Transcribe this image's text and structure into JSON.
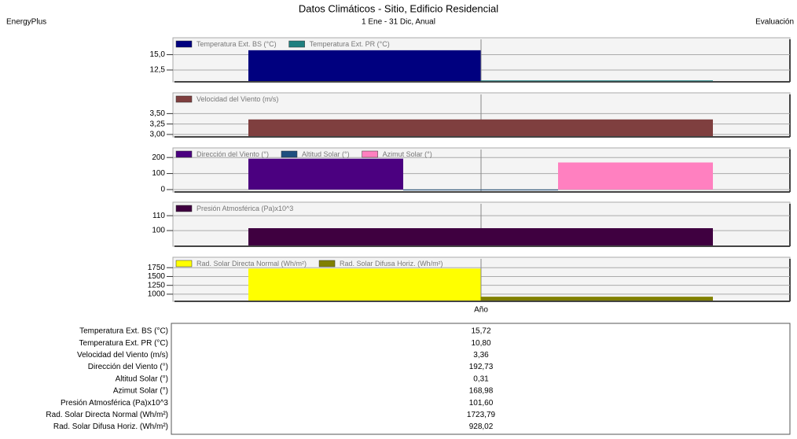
{
  "header": {
    "left": "EnergyPlus",
    "title": "Datos Climáticos - Sitio, Edificio Residencial",
    "subtitle": "1 Ene - 31 Dic, Anual",
    "right": "Evaluación"
  },
  "x_axis_label": "Año",
  "chart_data": [
    {
      "type": "bar",
      "series": [
        {
          "name": "Temperatura Ext. BS (°C)",
          "color": "#00007f",
          "values": [
            15.72
          ]
        },
        {
          "name": "Temperatura Ext. PR (°C)",
          "color": "#1f8080",
          "values": [
            10.8
          ]
        }
      ],
      "ylim": [
        10.7,
        17.5
      ],
      "yticks": [
        {
          "value": 12.5,
          "label": "12,5"
        },
        {
          "value": 15,
          "label": "15,0"
        }
      ],
      "grid": true
    },
    {
      "type": "bar",
      "series": [
        {
          "name": "Velocidad del Viento (m/s)",
          "color": "#7f3f3f",
          "values": [
            3.36
          ]
        }
      ],
      "ylim": [
        2.96,
        3.96
      ],
      "yticks": [
        {
          "value": 3,
          "label": "3,00"
        },
        {
          "value": 3.25,
          "label": "3,25"
        },
        {
          "value": 3.5,
          "label": "3,50"
        }
      ],
      "grid": true
    },
    {
      "type": "bar",
      "series": [
        {
          "name": "Dirección del Viento (°)",
          "color": "#4b0080",
          "values": [
            192.73
          ]
        },
        {
          "name": "Altitud Solar (°)",
          "color": "#1f4f7f",
          "values": [
            0.31
          ]
        },
        {
          "name": "Azimut Solar (°)",
          "color": "#ff80c0",
          "values": [
            168.98
          ]
        }
      ],
      "ylim": [
        -10,
        250
      ],
      "yticks": [
        0,
        100,
        200
      ],
      "grid": true
    },
    {
      "type": "bar",
      "series": [
        {
          "name": "Presión Atmosférica (Pa)x10^3",
          "color": "#3f0040",
          "values": [
            101.6
          ]
        }
      ],
      "ylim": [
        90,
        118
      ],
      "yticks": [
        100,
        110
      ],
      "grid": true
    },
    {
      "type": "bar",
      "series": [
        {
          "name": "Rad. Solar Directa Normal (Wh/m²)",
          "color": "#ffff00",
          "values": [
            1723.79
          ]
        },
        {
          "name": "Rad. Solar Difusa Horiz. (Wh/m²)",
          "color": "#808000",
          "values": [
            928.02
          ]
        }
      ],
      "ylim": [
        820,
        2000
      ],
      "yticks": [
        1000,
        1250,
        1500,
        1750
      ],
      "grid": true
    }
  ],
  "table": {
    "rows": [
      [
        "Temperatura Ext. BS (°C)",
        "15,72"
      ],
      [
        "Temperatura Ext. PR (°C)",
        "10,80"
      ],
      [
        "Velocidad del Viento (m/s)",
        "3,36"
      ],
      [
        "Dirección del Viento (°)",
        "192,73"
      ],
      [
        "Altitud Solar (°)",
        "0,31"
      ],
      [
        "Azimut Solar (°)",
        "168,98"
      ],
      [
        "Presión Atmosférica (Pa)x10^3",
        "101,60"
      ],
      [
        "Rad. Solar Directa Normal (Wh/m²)",
        "1723,79"
      ],
      [
        "Rad. Solar Difusa Horiz. (Wh/m²)",
        "928,02"
      ]
    ]
  }
}
